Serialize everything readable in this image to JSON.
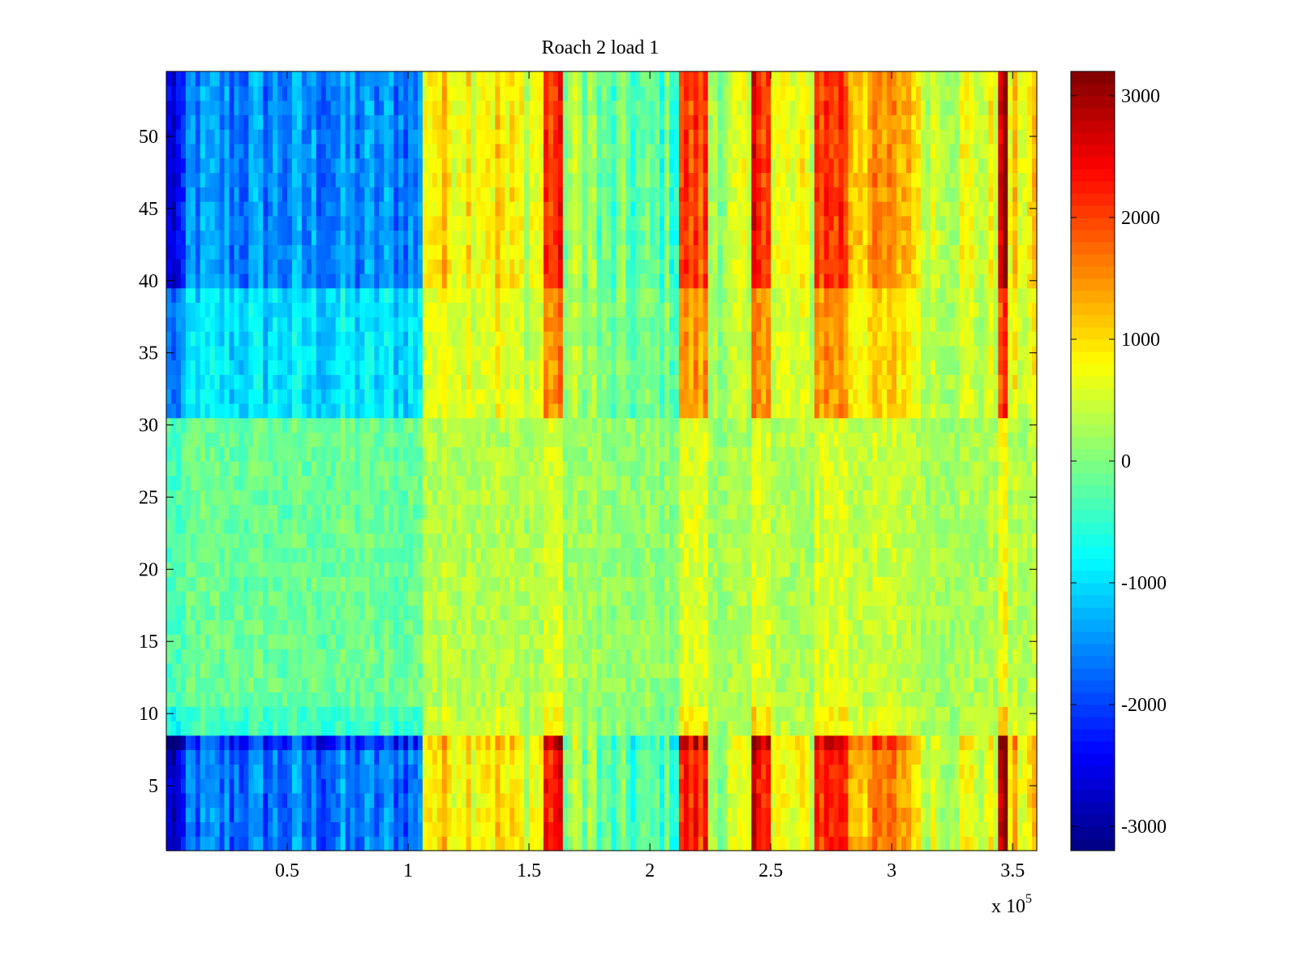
{
  "chart_data": {
    "type": "heatmap",
    "title": "Roach 2 load 1",
    "xlabel": "",
    "ylabel": "",
    "x_exponent_label": {
      "base": "x 10",
      "exponent": "5"
    },
    "xlim": [
      0,
      360000
    ],
    "ylim": [
      0.5,
      54.5
    ],
    "x_ticks": [
      50000,
      100000,
      150000,
      200000,
      250000,
      300000,
      350000
    ],
    "x_tick_labels": [
      "0.5",
      "1",
      "1.5",
      "2",
      "2.5",
      "3",
      "3.5"
    ],
    "y_ticks": [
      5,
      10,
      15,
      20,
      25,
      30,
      35,
      40,
      45,
      50
    ],
    "y_tick_labels": [
      "5",
      "10",
      "15",
      "20",
      "25",
      "30",
      "35",
      "40",
      "45",
      "50"
    ],
    "rows": 54,
    "colormap": "jet",
    "clim": [
      -3200,
      3200
    ],
    "colorbar": {
      "ticks": [
        -3000,
        -2000,
        -1000,
        0,
        1000,
        2000,
        3000
      ],
      "tick_labels": [
        "-3000",
        "-2000",
        "-1000",
        "0",
        "1000",
        "2000",
        "3000"
      ]
    },
    "column_segments": [
      {
        "x_start": 0,
        "x_end": 8000,
        "base": -2000
      },
      {
        "x_start": 8000,
        "x_end": 107000,
        "base": -1200
      },
      {
        "x_start": 107000,
        "x_end": 140000,
        "base": 800
      },
      {
        "x_start": 140000,
        "x_end": 157000,
        "base": 600
      },
      {
        "x_start": 157000,
        "x_end": 165000,
        "base": 1700
      },
      {
        "x_start": 165000,
        "x_end": 178000,
        "base": 200
      },
      {
        "x_start": 178000,
        "x_end": 212000,
        "base": -200
      },
      {
        "x_start": 212000,
        "x_end": 224000,
        "base": 1600
      },
      {
        "x_start": 224000,
        "x_end": 242000,
        "base": 300
      },
      {
        "x_start": 242000,
        "x_end": 250000,
        "base": 1900
      },
      {
        "x_start": 250000,
        "x_end": 268000,
        "base": 500
      },
      {
        "x_start": 268000,
        "x_end": 283000,
        "base": 1700
      },
      {
        "x_start": 283000,
        "x_end": 310000,
        "base": 1100
      },
      {
        "x_start": 310000,
        "x_end": 345000,
        "base": 500
      },
      {
        "x_start": 345000,
        "x_end": 348000,
        "base": 2400
      },
      {
        "x_start": 348000,
        "x_end": 360000,
        "base": 700
      }
    ],
    "row_gain": [
      {
        "y_start": 1,
        "y_end": 8,
        "gain": 1.35
      },
      {
        "y_start": 8,
        "y_end": 9,
        "gain": 1.7
      },
      {
        "y_start": 9,
        "y_end": 11,
        "gain": 0.45
      },
      {
        "y_start": 11,
        "y_end": 31,
        "gain": 0.25
      },
      {
        "y_start": 31,
        "y_end": 40,
        "gain": 0.85
      },
      {
        "y_start": 40,
        "y_end": 55,
        "gain": 1.25
      }
    ],
    "middle_rows_level": 200
  }
}
